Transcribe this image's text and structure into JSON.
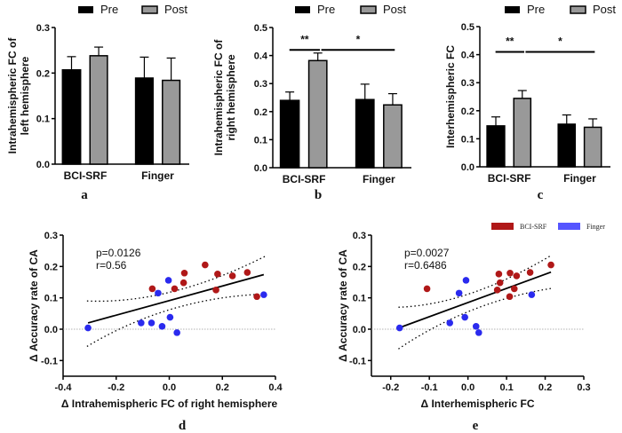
{
  "colors": {
    "pre": "#000000",
    "post": "#999999",
    "bci": "#b01818",
    "finger": "#2a2aee"
  },
  "chart_data": [
    {
      "type": "bar",
      "panel": "a",
      "ylabel": "Intrahemispheric FC of left hemisphere",
      "ylabel_lines": [
        "Intrahemispheric FC of",
        "left hemisphere"
      ],
      "categories": [
        "BCI-SRF",
        "Finger"
      ],
      "ylim": [
        0,
        0.3
      ],
      "yticks": [
        "0.0",
        "0.1",
        "0.2",
        "0.3"
      ],
      "series": [
        {
          "name": "Pre",
          "values": [
            0.207,
            0.189
          ],
          "err_upper": [
            0.236,
            0.235
          ]
        },
        {
          "name": "Post",
          "values": [
            0.238,
            0.184
          ],
          "err_upper": [
            0.257,
            0.233
          ]
        }
      ],
      "significance": []
    },
    {
      "type": "bar",
      "panel": "b",
      "ylabel": "Intrahemispheric FC of right hemisphere",
      "ylabel_lines": [
        "Intrahemispheric FC of",
        "right hemisphere"
      ],
      "categories": [
        "BCI-SRF",
        "Finger"
      ],
      "ylim": [
        0,
        0.5
      ],
      "yticks": [
        "0.0",
        "0.1",
        "0.2",
        "0.3",
        "0.4",
        "0.5"
      ],
      "series": [
        {
          "name": "Pre",
          "values": [
            0.24,
            0.243
          ],
          "err_upper": [
            0.27,
            0.298
          ]
        },
        {
          "name": "Post",
          "values": [
            0.382,
            0.224
          ],
          "err_upper": [
            0.409,
            0.264
          ]
        }
      ],
      "significance": [
        {
          "label": "**",
          "from": "BCI-SRF Pre",
          "to": "BCI-SRF Post",
          "level": 0.42
        },
        {
          "label": "*",
          "from": "BCI-SRF Post",
          "to": "Finger Post",
          "level": 0.42
        }
      ]
    },
    {
      "type": "bar",
      "panel": "c",
      "ylabel": "Interhemispheric FC",
      "ylabel_lines": [
        "Interhemispheric FC"
      ],
      "categories": [
        "BCI-SRF",
        "Finger"
      ],
      "ylim": [
        0,
        0.5
      ],
      "yticks": [
        "0.0",
        "0.1",
        "0.2",
        "0.3",
        "0.4",
        "0.5"
      ],
      "series": [
        {
          "name": "Pre",
          "values": [
            0.146,
            0.152
          ],
          "err_upper": [
            0.178,
            0.185
          ]
        },
        {
          "name": "Post",
          "values": [
            0.244,
            0.141
          ],
          "err_upper": [
            0.272,
            0.171
          ]
        }
      ],
      "significance": [
        {
          "label": "**",
          "from": "BCI-SRF Pre",
          "to": "BCI-SRF Post",
          "level": 0.41
        },
        {
          "label": "*",
          "from": "BCI-SRF Post",
          "to": "Finger Post",
          "level": 0.41
        }
      ]
    },
    {
      "type": "scatter",
      "panel": "d",
      "xlabel": "Δ Intrahemispheric FC of right hemisphere",
      "ylabel": "Δ Accuracy rate of CA",
      "xlim": [
        -0.4,
        0.4
      ],
      "ylim": [
        -0.15,
        0.3
      ],
      "xticks": [
        "-0.4",
        "-0.2",
        "0.0",
        "0.2",
        "0.4"
      ],
      "yticks": [
        "-0.1",
        "0.0",
        "0.1",
        "0.2",
        "0.3"
      ],
      "p": "p=0.0126",
      "r": "r=0.56",
      "series": [
        {
          "name": "BCI-SRF",
          "x": [
            -0.064,
            0.02,
            0.054,
            0.057,
            0.135,
            0.176,
            0.182,
            0.238,
            0.294,
            0.33
          ],
          "y": [
            0.129,
            0.129,
            0.148,
            0.179,
            0.205,
            0.125,
            0.176,
            0.17,
            0.181,
            0.104
          ]
        },
        {
          "name": "Finger",
          "x": [
            -0.306,
            -0.106,
            -0.067,
            -0.042,
            -0.027,
            -0.003,
            0.003,
            0.029,
            0.356
          ],
          "y": [
            0.004,
            0.02,
            0.02,
            0.115,
            0.009,
            0.156,
            0.038,
            -0.011,
            0.11
          ]
        }
      ],
      "fit": {
        "x": [
          -0.306,
          0.356
        ],
        "y": [
          0.02,
          0.174
        ]
      },
      "ci_upper": {
        "x": [
          -0.31,
          0.0,
          0.36
        ],
        "y": [
          0.09,
          0.12,
          0.232
        ]
      },
      "ci_lower": {
        "x": [
          -0.31,
          0.0,
          0.36
        ],
        "y": [
          -0.055,
          0.065,
          0.112
        ]
      }
    },
    {
      "type": "scatter",
      "panel": "e",
      "xlabel": "Δ Interhemispheric FC",
      "ylabel": "Δ Accuracy rate of CA",
      "xlim": [
        -0.25,
        0.3
      ],
      "ylim": [
        -0.15,
        0.3
      ],
      "xticks": [
        "-0.2",
        "-0.1",
        "0.0",
        "0.1",
        "0.2",
        "0.3"
      ],
      "yticks": [
        "-0.1",
        "0.0",
        "0.1",
        "0.2",
        "0.3"
      ],
      "p": "p=0.0027",
      "r": "r=0.6486",
      "series": [
        {
          "name": "BCI-SRF",
          "x": [
            -0.106,
            0.08,
            0.083,
            0.076,
            0.109,
            0.108,
            0.12,
            0.126,
            0.161,
            0.215
          ],
          "y": [
            0.129,
            0.176,
            0.148,
            0.125,
            0.179,
            0.104,
            0.129,
            0.17,
            0.181,
            0.205
          ]
        },
        {
          "name": "Finger",
          "x": [
            -0.177,
            -0.047,
            -0.023,
            -0.005,
            -0.008,
            0.021,
            0.028,
            0.165
          ],
          "y": [
            0.004,
            0.02,
            0.115,
            0.156,
            0.038,
            0.009,
            -0.011,
            0.11
          ]
        }
      ],
      "fit": {
        "x": [
          -0.177,
          0.215
        ],
        "y": [
          0.005,
          0.182
        ]
      },
      "ci_upper": {
        "x": [
          -0.18,
          0.0,
          0.215
        ],
        "y": [
          0.07,
          0.115,
          0.235
        ]
      },
      "ci_lower": {
        "x": [
          -0.18,
          0.0,
          0.215
        ],
        "y": [
          -0.063,
          0.06,
          0.13
        ]
      }
    }
  ],
  "legend_bar": {
    "pre": "Pre",
    "post": "Post"
  },
  "legend_scatter": {
    "bci": "BCI-SRF",
    "finger": "Finger"
  }
}
